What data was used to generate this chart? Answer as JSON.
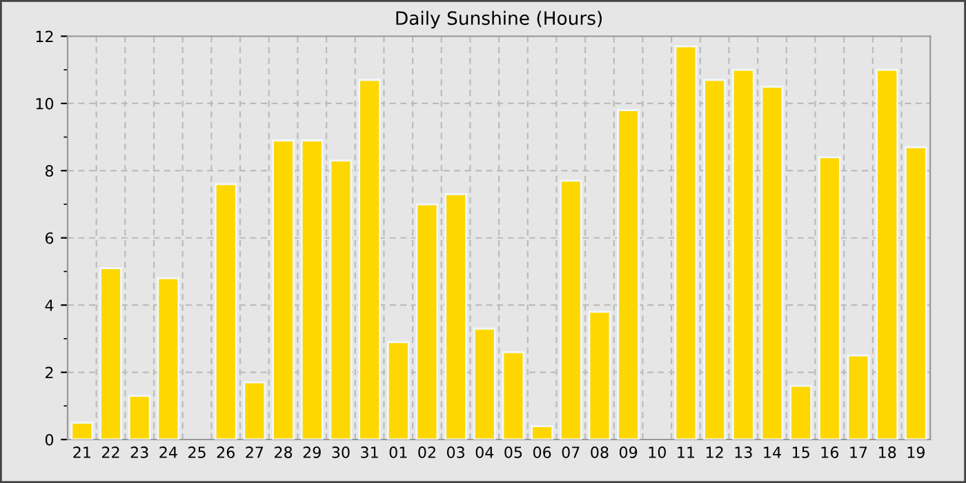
{
  "chart_data": {
    "type": "bar",
    "title": "Daily Sunshine (Hours)",
    "categories": [
      "21",
      "22",
      "23",
      "24",
      "25",
      "26",
      "27",
      "28",
      "29",
      "30",
      "31",
      "01",
      "02",
      "03",
      "04",
      "05",
      "06",
      "07",
      "08",
      "09",
      "10",
      "11",
      "12",
      "13",
      "14",
      "15",
      "16",
      "17",
      "18",
      "19"
    ],
    "values": [
      0.5,
      5.1,
      1.3,
      4.8,
      0,
      7.6,
      1.7,
      8.9,
      8.9,
      8.3,
      10.7,
      2.9,
      7.0,
      7.3,
      3.3,
      2.6,
      0.4,
      7.7,
      3.8,
      9.8,
      0,
      11.7,
      10.7,
      11.0,
      10.5,
      1.6,
      8.4,
      2.5,
      11.0,
      8.7
    ],
    "color": "#ffd700",
    "ylim": [
      0,
      12
    ],
    "yticks": [
      0,
      2,
      4,
      6,
      8,
      10,
      12
    ],
    "grid": true
  }
}
